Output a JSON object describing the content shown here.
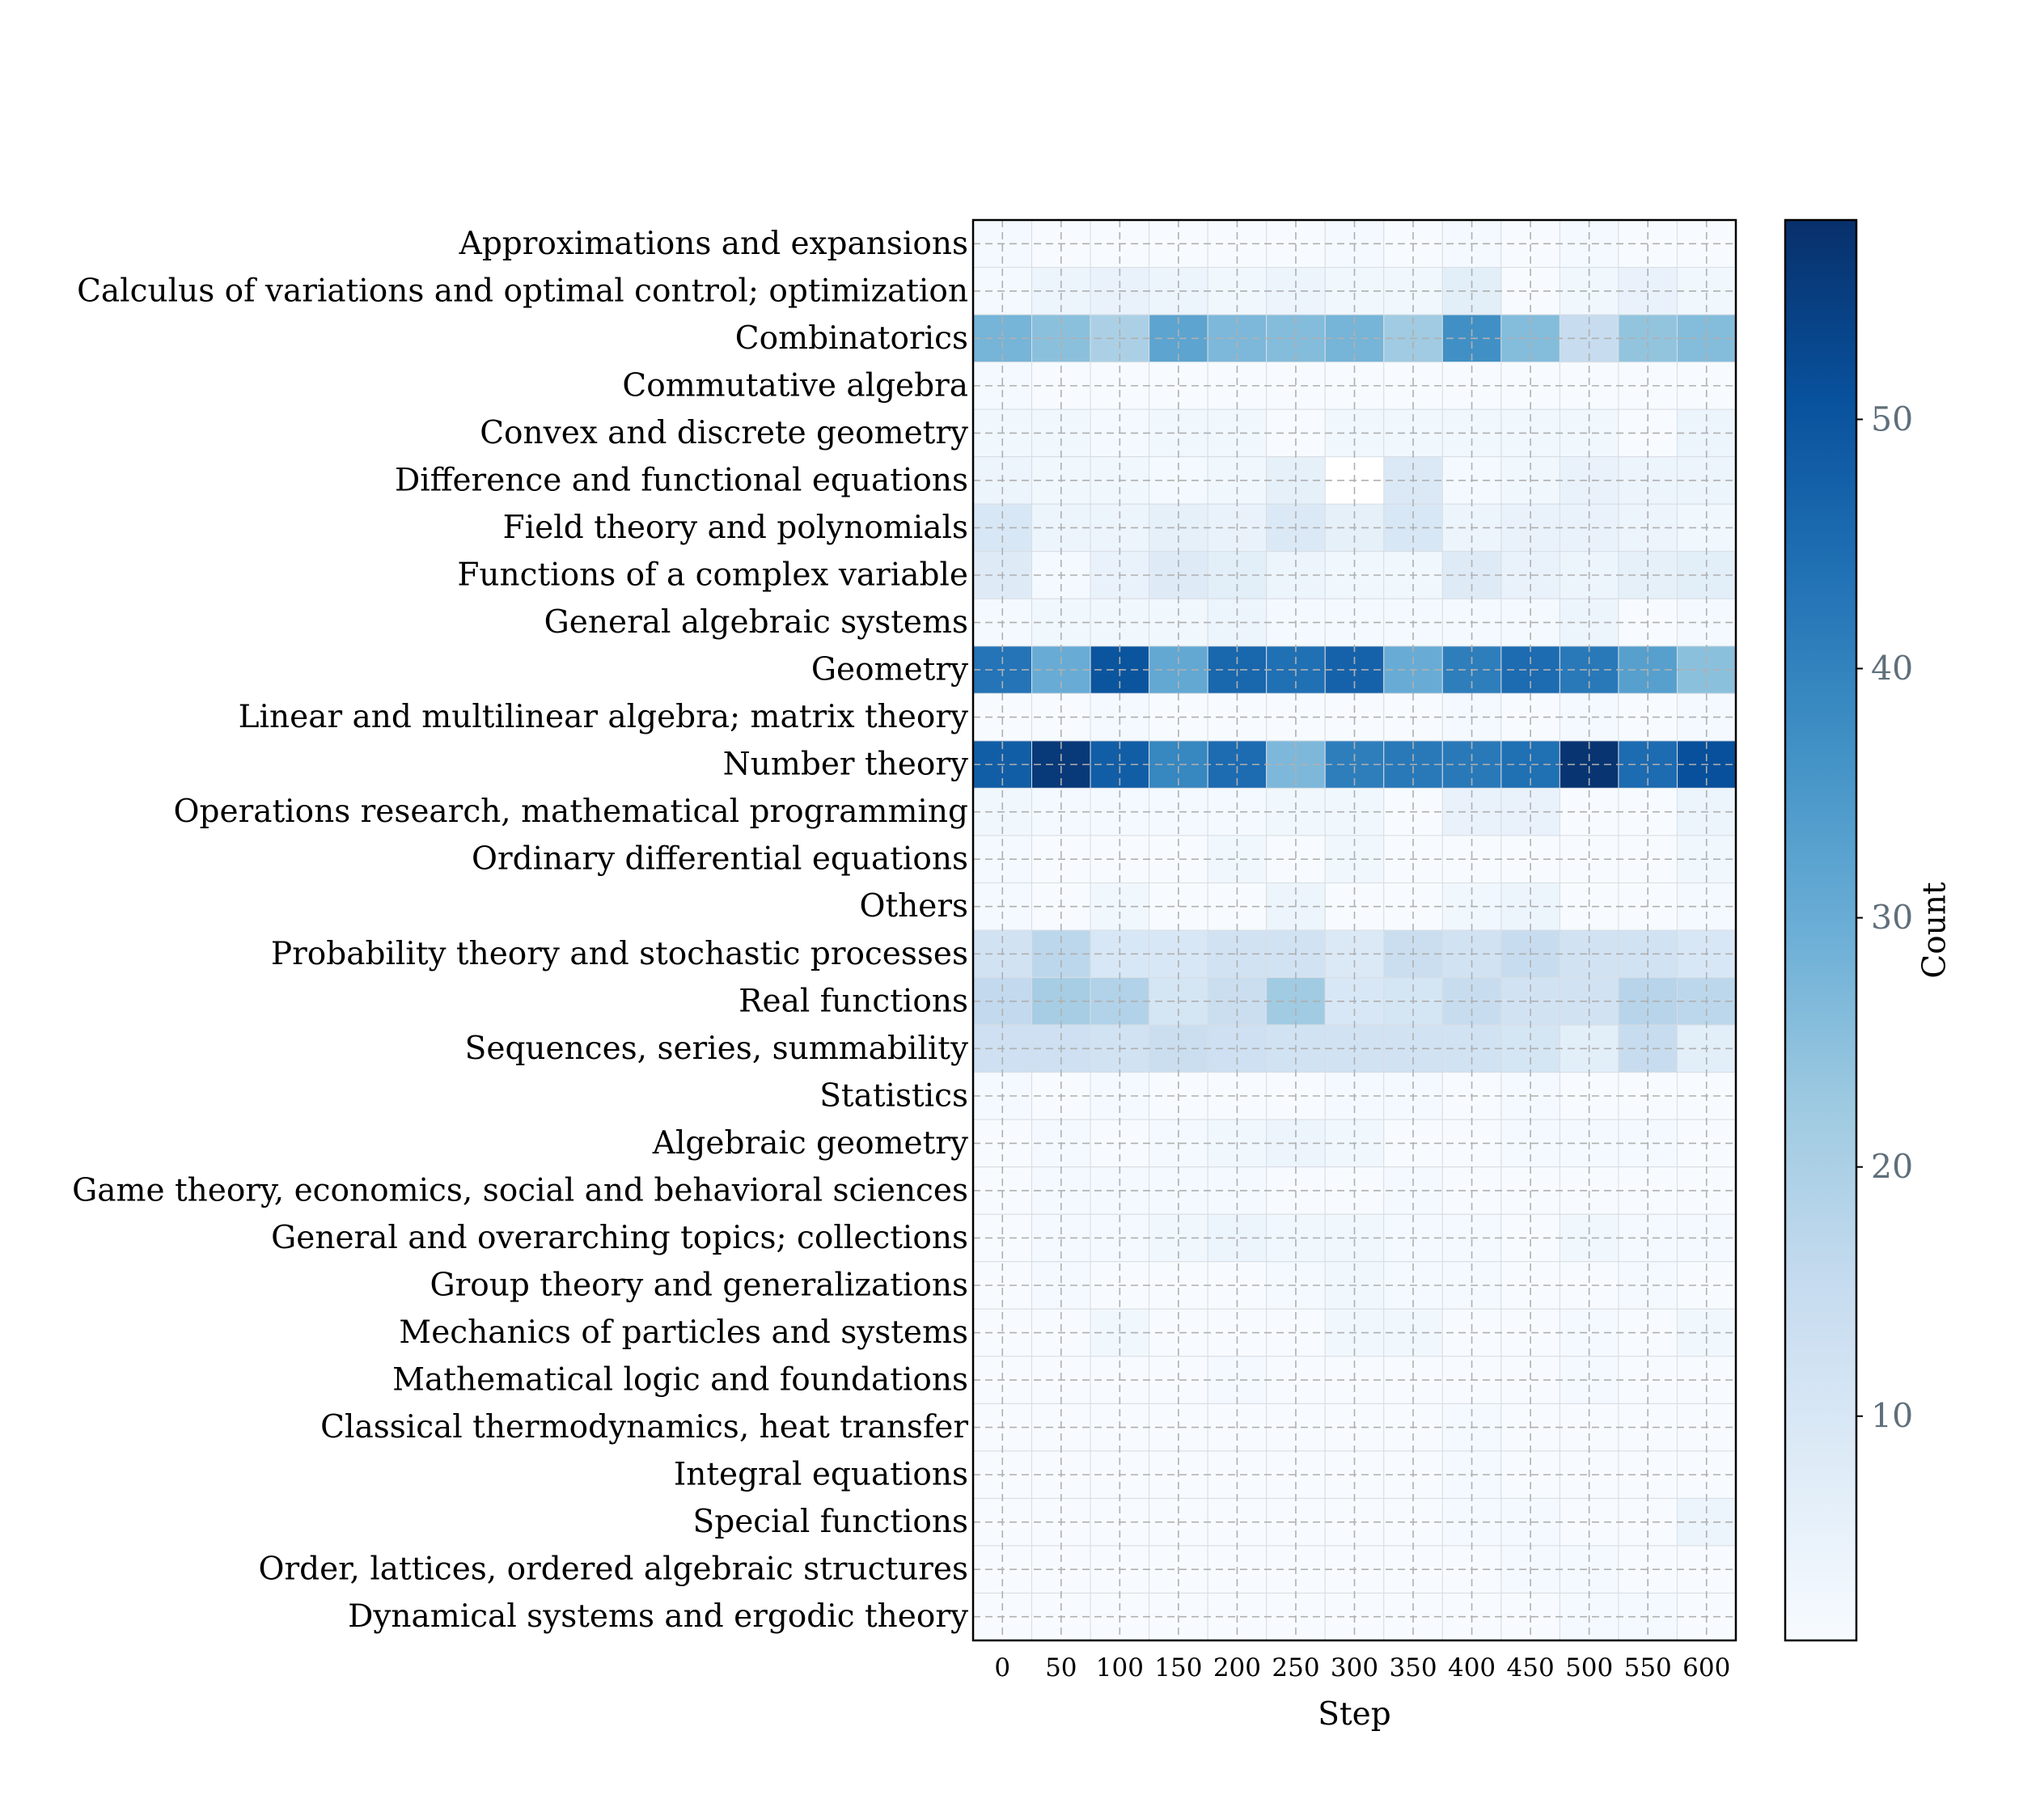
{
  "chart_data": {
    "type": "heatmap",
    "xlabel": "Step",
    "colorbar_label": "Count",
    "x": [
      0,
      50,
      100,
      150,
      200,
      250,
      300,
      350,
      400,
      450,
      500,
      550,
      600
    ],
    "colorbar_ticks": [
      10,
      20,
      30,
      40,
      50
    ],
    "colorbar_range": [
      1,
      58
    ],
    "colormap": "Blues",
    "grid": true,
    "rows": [
      {
        "label": "Approximations and expansions",
        "values": [
          2,
          1,
          1,
          1,
          1,
          1,
          2,
          1,
          2,
          1,
          2,
          1,
          1
        ]
      },
      {
        "label": "Calculus of variations and optimal control; optimization",
        "values": [
          2,
          4,
          5,
          4,
          3,
          4,
          3,
          3,
          7,
          1,
          3,
          5,
          3
        ]
      },
      {
        "label": "Combinatorics",
        "values": [
          28,
          25,
          20,
          32,
          27,
          26,
          28,
          22,
          37,
          26,
          15,
          24,
          26
        ]
      },
      {
        "label": "Commutative algebra",
        "values": [
          2,
          1,
          1,
          1,
          1,
          1,
          1,
          1,
          1,
          1,
          1,
          1,
          1
        ]
      },
      {
        "label": "Convex and discrete geometry",
        "values": [
          3,
          3,
          2,
          3,
          3,
          1,
          3,
          3,
          3,
          3,
          3,
          1,
          4
        ]
      },
      {
        "label": "Difference and functional equations",
        "values": [
          4,
          3,
          3,
          2,
          3,
          6,
          0,
          9,
          2,
          3,
          5,
          4,
          4
        ]
      },
      {
        "label": "Field theory and polynomials",
        "values": [
          10,
          4,
          4,
          6,
          5,
          9,
          6,
          10,
          4,
          5,
          5,
          4,
          3
        ]
      },
      {
        "label": "Functions of a complex variable",
        "values": [
          8,
          2,
          5,
          8,
          7,
          4,
          3,
          3,
          8,
          5,
          4,
          6,
          7
        ]
      },
      {
        "label": "General algebraic systems",
        "values": [
          2,
          3,
          3,
          3,
          4,
          2,
          2,
          2,
          2,
          2,
          4,
          1,
          2
        ]
      },
      {
        "label": "Geometry",
        "values": [
          43,
          30,
          50,
          31,
          46,
          44,
          47,
          30,
          41,
          45,
          42,
          33,
          25
        ]
      },
      {
        "label": "Linear and multilinear algebra; matrix theory",
        "values": [
          1,
          1,
          2,
          1,
          1,
          1,
          1,
          1,
          2,
          1,
          2,
          1,
          2
        ]
      },
      {
        "label": "Number theory",
        "values": [
          48,
          56,
          48,
          39,
          45,
          27,
          41,
          42,
          42,
          44,
          57,
          45,
          51
        ]
      },
      {
        "label": "Operations research, mathematical programming",
        "values": [
          3,
          2,
          2,
          2,
          2,
          3,
          3,
          1,
          5,
          5,
          1,
          1,
          4
        ]
      },
      {
        "label": "Ordinary differential equations",
        "values": [
          2,
          1,
          1,
          1,
          3,
          1,
          3,
          1,
          1,
          1,
          1,
          1,
          3
        ]
      },
      {
        "label": "Others",
        "values": [
          2,
          1,
          3,
          1,
          1,
          4,
          1,
          1,
          3,
          4,
          1,
          1,
          2
        ]
      },
      {
        "label": "Probability theory and stochastic processes",
        "values": [
          12,
          17,
          10,
          10,
          12,
          12,
          9,
          14,
          12,
          15,
          12,
          12,
          10
        ]
      },
      {
        "label": "Real functions",
        "values": [
          16,
          21,
          19,
          11,
          14,
          22,
          10,
          11,
          15,
          12,
          12,
          18,
          17
        ]
      },
      {
        "label": "Sequences, series, summability",
        "values": [
          13,
          13,
          12,
          14,
          13,
          12,
          12,
          12,
          12,
          11,
          7,
          15,
          7
        ]
      },
      {
        "label": "Statistics",
        "values": [
          2,
          1,
          2,
          1,
          1,
          1,
          2,
          2,
          1,
          2,
          1,
          1,
          1
        ]
      },
      {
        "label": "Algebraic geometry",
        "values": [
          1,
          2,
          1,
          2,
          3,
          4,
          3,
          1,
          1,
          2,
          2,
          2,
          1
        ]
      },
      {
        "label": "Game theory, economics, social and behavioral sciences",
        "values": [
          1,
          2,
          2,
          2,
          2,
          1,
          1,
          2,
          1,
          1,
          1,
          1,
          1
        ]
      },
      {
        "label": "General and overarching topics; collections",
        "values": [
          1,
          2,
          2,
          3,
          4,
          3,
          3,
          2,
          2,
          1,
          3,
          2,
          2
        ]
      },
      {
        "label": "Group theory and generalizations",
        "values": [
          1,
          2,
          1,
          1,
          1,
          2,
          3,
          2,
          2,
          1,
          1,
          2,
          1
        ]
      },
      {
        "label": "Mechanics of particles and systems",
        "values": [
          1,
          1,
          3,
          1,
          1,
          1,
          3,
          3,
          1,
          1,
          2,
          1,
          3
        ]
      },
      {
        "label": "Mathematical logic and foundations",
        "values": [
          1,
          1,
          1,
          1,
          2,
          1,
          1,
          1,
          1,
          1,
          2,
          1,
          1
        ]
      },
      {
        "label": "Classical thermodynamics, heat transfer",
        "values": [
          1,
          1,
          1,
          1,
          1,
          1,
          1,
          1,
          2,
          1,
          1,
          1,
          1
        ]
      },
      {
        "label": "Integral equations",
        "values": [
          1,
          1,
          1,
          1,
          1,
          1,
          1,
          1,
          2,
          1,
          1,
          1,
          1
        ]
      },
      {
        "label": "Special functions",
        "values": [
          1,
          1,
          1,
          1,
          1,
          1,
          1,
          1,
          2,
          2,
          1,
          1,
          4
        ]
      },
      {
        "label": "Order, lattices, ordered algebraic structures",
        "values": [
          1,
          1,
          1,
          1,
          1,
          1,
          1,
          1,
          1,
          2,
          2,
          1,
          1
        ]
      },
      {
        "label": "Dynamical systems and ergodic theory",
        "values": [
          1,
          1,
          1,
          1,
          1,
          1,
          1,
          1,
          1,
          1,
          2,
          2,
          1
        ]
      }
    ]
  }
}
